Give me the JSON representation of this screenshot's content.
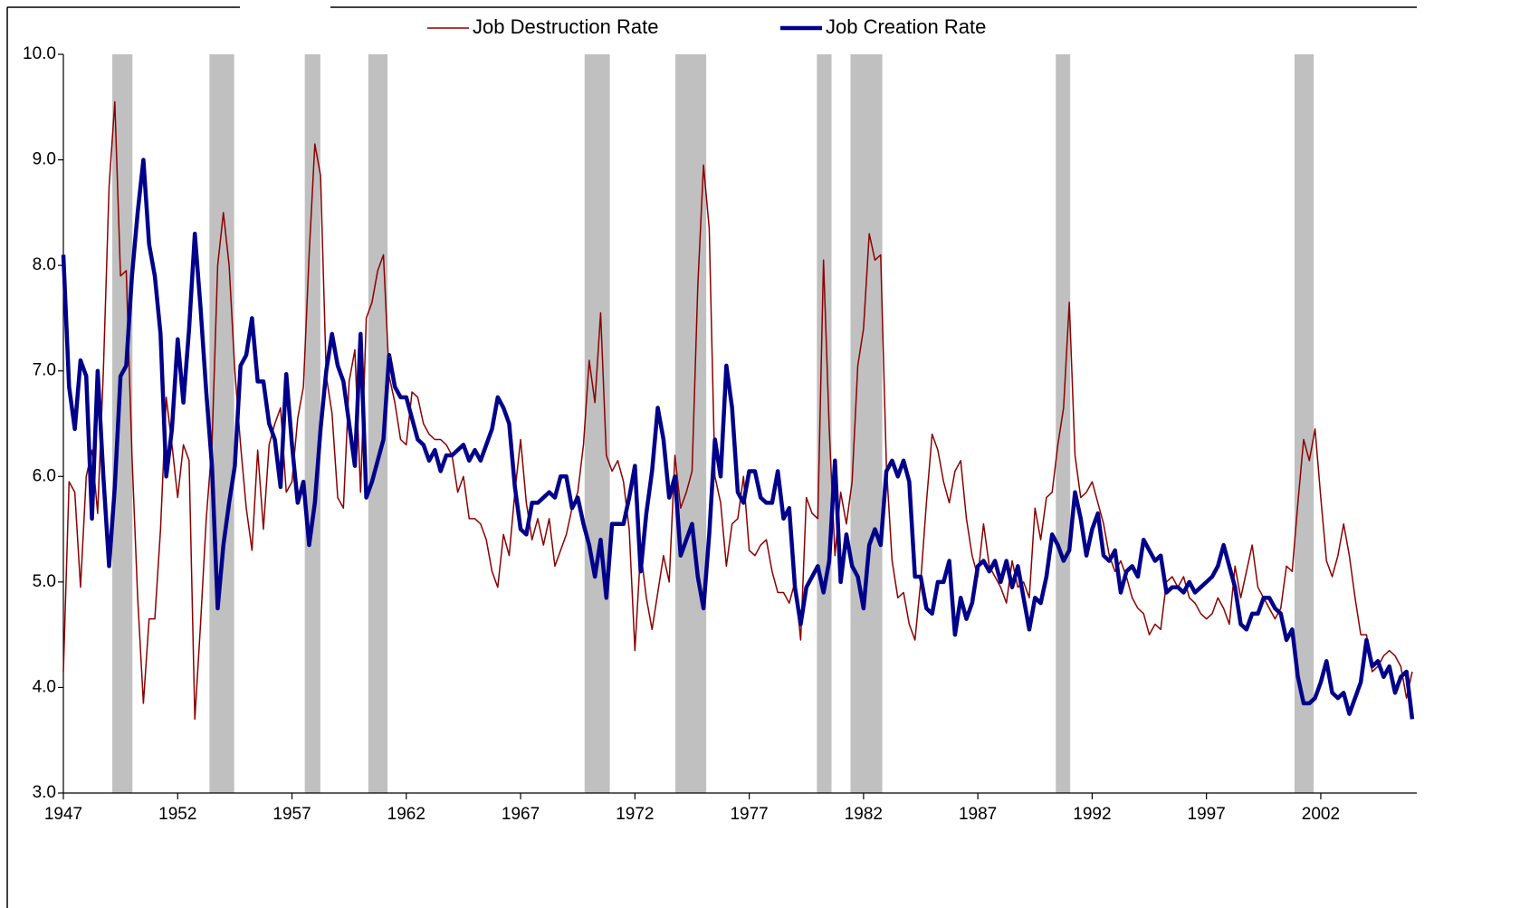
{
  "chart_data": {
    "type": "line",
    "xlim": [
      1947,
      2006.2
    ],
    "ylim": [
      3,
      10
    ],
    "xticks": [
      1947,
      1952,
      1957,
      1962,
      1967,
      1972,
      1977,
      1982,
      1987,
      1992,
      1997,
      2002
    ],
    "yticks": [
      {
        "value": 3,
        "label": "3.0"
      },
      {
        "value": 4,
        "label": "4.0"
      },
      {
        "value": 5,
        "label": "5.0"
      },
      {
        "value": 6,
        "label": "6.0"
      },
      {
        "value": 7,
        "label": "7.0"
      },
      {
        "value": 8,
        "label": "8.0"
      },
      {
        "value": 9,
        "label": "9.0"
      },
      {
        "value": 10,
        "label": "10.0"
      }
    ],
    "legend": "top",
    "recession_color": "#c0c0c0",
    "recessions": [
      {
        "start": 1949.14,
        "end": 1950.02
      },
      {
        "start": 1953.39,
        "end": 1954.47
      },
      {
        "start": 1957.56,
        "end": 1958.24
      },
      {
        "start": 1960.34,
        "end": 1961.18
      },
      {
        "start": 1969.8,
        "end": 1970.9
      },
      {
        "start": 1973.77,
        "end": 1975.12
      },
      {
        "start": 1979.96,
        "end": 1980.6
      },
      {
        "start": 1981.43,
        "end": 1982.82
      },
      {
        "start": 1990.41,
        "end": 1991.04
      },
      {
        "start": 2000.85,
        "end": 2001.69
      }
    ],
    "x": [
      1947,
      1947.25,
      1947.5,
      1947.75,
      1948,
      1948.25,
      1948.5,
      1948.75,
      1949,
      1949.25,
      1949.5,
      1949.75,
      1950,
      1950.25,
      1950.5,
      1950.75,
      1951,
      1951.25,
      1951.5,
      1951.75,
      1952,
      1952.25,
      1952.5,
      1952.75,
      1953,
      1953.25,
      1953.5,
      1953.75,
      1954,
      1954.25,
      1954.5,
      1954.75,
      1955,
      1955.25,
      1955.5,
      1955.75,
      1956,
      1956.25,
      1956.5,
      1956.75,
      1957,
      1957.25,
      1957.5,
      1957.75,
      1958,
      1958.25,
      1958.5,
      1958.75,
      1959,
      1959.25,
      1959.5,
      1959.75,
      1960,
      1960.25,
      1960.5,
      1960.75,
      1961,
      1961.25,
      1961.5,
      1961.75,
      1962,
      1962.25,
      1962.5,
      1962.75,
      1963,
      1963.25,
      1963.5,
      1963.75,
      1964,
      1964.25,
      1964.5,
      1964.75,
      1965,
      1965.25,
      1965.5,
      1965.75,
      1966,
      1966.25,
      1966.5,
      1966.75,
      1967,
      1967.25,
      1967.5,
      1967.75,
      1968,
      1968.25,
      1968.5,
      1968.75,
      1969,
      1969.25,
      1969.5,
      1969.75,
      1970,
      1970.25,
      1970.5,
      1970.75,
      1971,
      1971.25,
      1971.5,
      1971.75,
      1972,
      1972.25,
      1972.5,
      1972.75,
      1973,
      1973.25,
      1973.5,
      1973.75,
      1974,
      1974.25,
      1974.5,
      1974.75,
      1975,
      1975.25,
      1975.5,
      1975.75,
      1976,
      1976.25,
      1976.5,
      1976.75,
      1977,
      1977.25,
      1977.5,
      1977.75,
      1978,
      1978.25,
      1978.5,
      1978.75,
      1979,
      1979.25,
      1979.5,
      1979.75,
      1980,
      1980.25,
      1980.5,
      1980.75,
      1981,
      1981.25,
      1981.5,
      1981.75,
      1982,
      1982.25,
      1982.5,
      1982.75,
      1983,
      1983.25,
      1983.5,
      1983.75,
      1984,
      1984.25,
      1984.5,
      1984.75,
      1985,
      1985.25,
      1985.5,
      1985.75,
      1986,
      1986.25,
      1986.5,
      1986.75,
      1987,
      1987.25,
      1987.5,
      1987.75,
      1988,
      1988.25,
      1988.5,
      1988.75,
      1989,
      1989.25,
      1989.5,
      1989.75,
      1990,
      1990.25,
      1990.5,
      1990.75,
      1991,
      1991.25,
      1991.5,
      1991.75,
      1992,
      1992.25,
      1992.5,
      1992.75,
      1993,
      1993.25,
      1993.5,
      1993.75,
      1994,
      1994.25,
      1994.5,
      1994.75,
      1995,
      1995.25,
      1995.5,
      1995.75,
      1996,
      1996.25,
      1996.5,
      1996.75,
      1997,
      1997.25,
      1997.5,
      1997.75,
      1998,
      1998.25,
      1998.5,
      1998.75,
      1999,
      1999.25,
      1999.5,
      1999.75,
      2000,
      2000.25,
      2000.5,
      2000.75,
      2001,
      2001.25,
      2001.5,
      2001.75,
      2002,
      2002.25,
      2002.5,
      2002.75,
      2003,
      2003.25,
      2003.5,
      2003.75,
      2004,
      2004.25,
      2004.5,
      2004.75,
      2005,
      2005.25,
      2005.5,
      2005.75,
      2006
    ],
    "series": [
      {
        "name": "Job Destruction Rate",
        "color": "#8b0000",
        "width": 1.5,
        "values": [
          4.15,
          5.95,
          5.85,
          4.95,
          6.0,
          6.25,
          5.65,
          7.0,
          8.75,
          9.55,
          7.9,
          7.95,
          6.2,
          4.85,
          3.85,
          4.65,
          4.65,
          5.5,
          6.75,
          6.3,
          5.8,
          6.3,
          6.15,
          3.7,
          4.6,
          5.6,
          6.3,
          8.0,
          8.5,
          8.0,
          7.0,
          6.3,
          5.7,
          5.3,
          6.25,
          5.5,
          6.3,
          6.5,
          6.65,
          5.85,
          5.95,
          6.55,
          6.85,
          8.1,
          9.15,
          8.85,
          6.95,
          6.6,
          5.8,
          5.7,
          6.9,
          7.2,
          5.85,
          7.5,
          7.65,
          7.95,
          8.1,
          6.95,
          6.7,
          6.35,
          6.3,
          6.8,
          6.75,
          6.5,
          6.4,
          6.35,
          6.35,
          6.3,
          6.2,
          5.85,
          6.0,
          5.6,
          5.6,
          5.55,
          5.4,
          5.1,
          4.95,
          5.45,
          5.25,
          5.85,
          6.35,
          5.75,
          5.4,
          5.6,
          5.35,
          5.6,
          5.15,
          5.3,
          5.45,
          5.7,
          5.85,
          6.3,
          7.1,
          6.7,
          7.55,
          6.2,
          6.05,
          6.15,
          5.95,
          5.5,
          4.35,
          5.3,
          4.85,
          4.55,
          4.9,
          5.25,
          5.0,
          6.2,
          5.7,
          5.85,
          6.05,
          7.8,
          8.95,
          8.35,
          6.0,
          5.75,
          5.15,
          5.55,
          5.6,
          6.0,
          5.3,
          5.25,
          5.35,
          5.4,
          5.1,
          4.9,
          4.9,
          4.8,
          5.0,
          4.45,
          5.8,
          5.65,
          5.6,
          8.05,
          6.45,
          5.25,
          5.85,
          5.55,
          5.95,
          7.05,
          7.4,
          8.3,
          8.05,
          8.1,
          6.1,
          5.2,
          4.85,
          4.9,
          4.6,
          4.45,
          5.0,
          5.75,
          6.4,
          6.25,
          5.95,
          5.75,
          6.05,
          6.15,
          5.6,
          5.25,
          5.05,
          5.55,
          5.15,
          5.05,
          4.95,
          4.8,
          5.2,
          4.95,
          5.0,
          4.85,
          5.7,
          5.4,
          5.8,
          5.85,
          6.3,
          6.65,
          7.65,
          6.2,
          5.8,
          5.85,
          5.95,
          5.75,
          5.55,
          5.25,
          5.1,
          5.2,
          5.05,
          4.85,
          4.75,
          4.7,
          4.5,
          4.6,
          4.55,
          5.0,
          5.05,
          4.95,
          5.05,
          4.85,
          4.8,
          4.7,
          4.65,
          4.7,
          4.85,
          4.75,
          4.6,
          5.15,
          4.85,
          5.1,
          5.35,
          4.95,
          4.85,
          4.75,
          4.65,
          4.75,
          5.15,
          5.1,
          5.75,
          6.35,
          6.15,
          6.45,
          5.8,
          5.2,
          5.05,
          5.25,
          5.55,
          5.25,
          4.85,
          4.5,
          4.5,
          4.15,
          4.2,
          4.3,
          4.35,
          4.3,
          4.2,
          3.9,
          4.15
        ]
      },
      {
        "name": "Job Creation Rate",
        "color": "#00008b",
        "width": 4.5,
        "values": [
          8.1,
          6.85,
          6.45,
          7.1,
          6.95,
          5.6,
          7.0,
          6.0,
          5.15,
          5.9,
          6.95,
          7.05,
          7.9,
          8.5,
          9.0,
          8.2,
          7.9,
          7.35,
          6.0,
          6.45,
          7.3,
          6.7,
          7.4,
          8.3,
          7.6,
          6.8,
          6.1,
          4.75,
          5.35,
          5.75,
          6.1,
          7.05,
          7.15,
          7.5,
          6.9,
          6.9,
          6.5,
          6.35,
          5.9,
          6.97,
          6.3,
          5.75,
          5.95,
          5.35,
          5.75,
          6.45,
          7.0,
          7.35,
          7.05,
          6.9,
          6.5,
          6.1,
          7.35,
          5.8,
          5.95,
          6.15,
          6.35,
          7.15,
          6.85,
          6.75,
          6.75,
          6.55,
          6.35,
          6.3,
          6.15,
          6.25,
          6.05,
          6.2,
          6.2,
          6.25,
          6.3,
          6.15,
          6.25,
          6.15,
          6.3,
          6.45,
          6.75,
          6.65,
          6.5,
          5.9,
          5.5,
          5.45,
          5.75,
          5.75,
          5.8,
          5.85,
          5.8,
          6.0,
          6.0,
          5.7,
          5.8,
          5.55,
          5.35,
          5.05,
          5.4,
          4.85,
          5.55,
          5.55,
          5.55,
          5.8,
          6.1,
          5.1,
          5.65,
          6.05,
          6.65,
          6.35,
          5.8,
          6.0,
          5.25,
          5.4,
          5.55,
          5.05,
          4.75,
          5.45,
          6.35,
          6.0,
          7.05,
          6.65,
          5.85,
          5.75,
          6.05,
          6.05,
          5.8,
          5.75,
          5.75,
          6.05,
          5.6,
          5.7,
          4.95,
          4.6,
          4.95,
          5.05,
          5.15,
          4.9,
          5.2,
          6.15,
          5.0,
          5.45,
          5.15,
          5.05,
          4.75,
          5.35,
          5.5,
          5.35,
          6.05,
          6.15,
          6.0,
          6.15,
          5.95,
          5.05,
          5.05,
          4.75,
          4.7,
          5.0,
          5.0,
          5.2,
          4.5,
          4.85,
          4.65,
          4.8,
          5.15,
          5.2,
          5.1,
          5.2,
          5.0,
          5.2,
          4.95,
          5.15,
          4.85,
          4.55,
          4.85,
          4.8,
          5.05,
          5.45,
          5.35,
          5.2,
          5.3,
          5.85,
          5.6,
          5.25,
          5.5,
          5.65,
          5.25,
          5.2,
          5.3,
          4.9,
          5.1,
          5.15,
          5.05,
          5.4,
          5.3,
          5.2,
          5.25,
          4.9,
          4.95,
          4.95,
          4.9,
          5.0,
          4.9,
          4.95,
          5.0,
          5.05,
          5.15,
          5.35,
          5.15,
          4.95,
          4.6,
          4.55,
          4.7,
          4.7,
          4.85,
          4.85,
          4.75,
          4.7,
          4.45,
          4.55,
          4.1,
          3.85,
          3.85,
          3.9,
          4.05,
          4.25,
          3.95,
          3.9,
          3.95,
          3.75,
          3.9,
          4.05,
          4.45,
          4.2,
          4.25,
          4.1,
          4.2,
          3.95,
          4.1,
          4.15,
          3.7
        ]
      }
    ]
  }
}
